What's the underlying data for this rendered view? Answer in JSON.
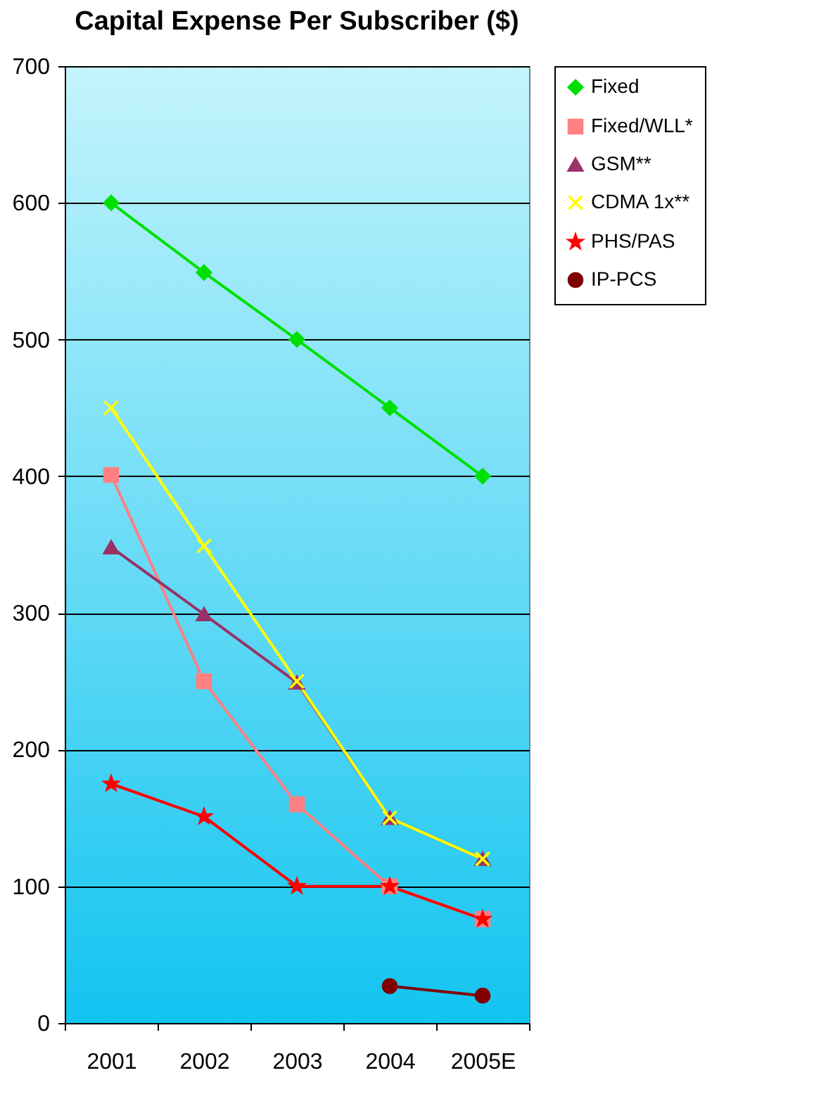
{
  "chart_data": {
    "type": "line",
    "title": "Capital Expense Per Subscriber ($)",
    "categories": [
      "2001",
      "2002",
      "2003",
      "2004",
      "2005E"
    ],
    "series": [
      {
        "name": "Fixed",
        "color": "#00e000",
        "marker": "diamond",
        "values": [
          600,
          549,
          500,
          450,
          400
        ]
      },
      {
        "name": "Fixed/WLL*",
        "color": "#ff8080",
        "marker": "square",
        "values": [
          401,
          250,
          160,
          100,
          76
        ]
      },
      {
        "name": "GSM**",
        "color": "#993366",
        "marker": "triangle",
        "values": [
          348,
          299,
          249,
          150,
          120
        ]
      },
      {
        "name": "CDMA 1x**",
        "color": "#ffff00",
        "marker": "cross",
        "values": [
          450,
          349,
          250,
          150,
          120
        ]
      },
      {
        "name": "PHS/PAS",
        "color": "#ff0000",
        "marker": "star",
        "values": [
          175,
          151,
          100,
          100,
          76
        ]
      },
      {
        "name": "IP-PCS",
        "color": "#800000",
        "marker": "circle",
        "values": [
          null,
          null,
          null,
          27,
          20
        ]
      }
    ],
    "ylim": [
      0,
      700
    ],
    "yticks": [
      0,
      100,
      200,
      300,
      400,
      500,
      600,
      700
    ],
    "grid": "y",
    "legend": "right"
  }
}
